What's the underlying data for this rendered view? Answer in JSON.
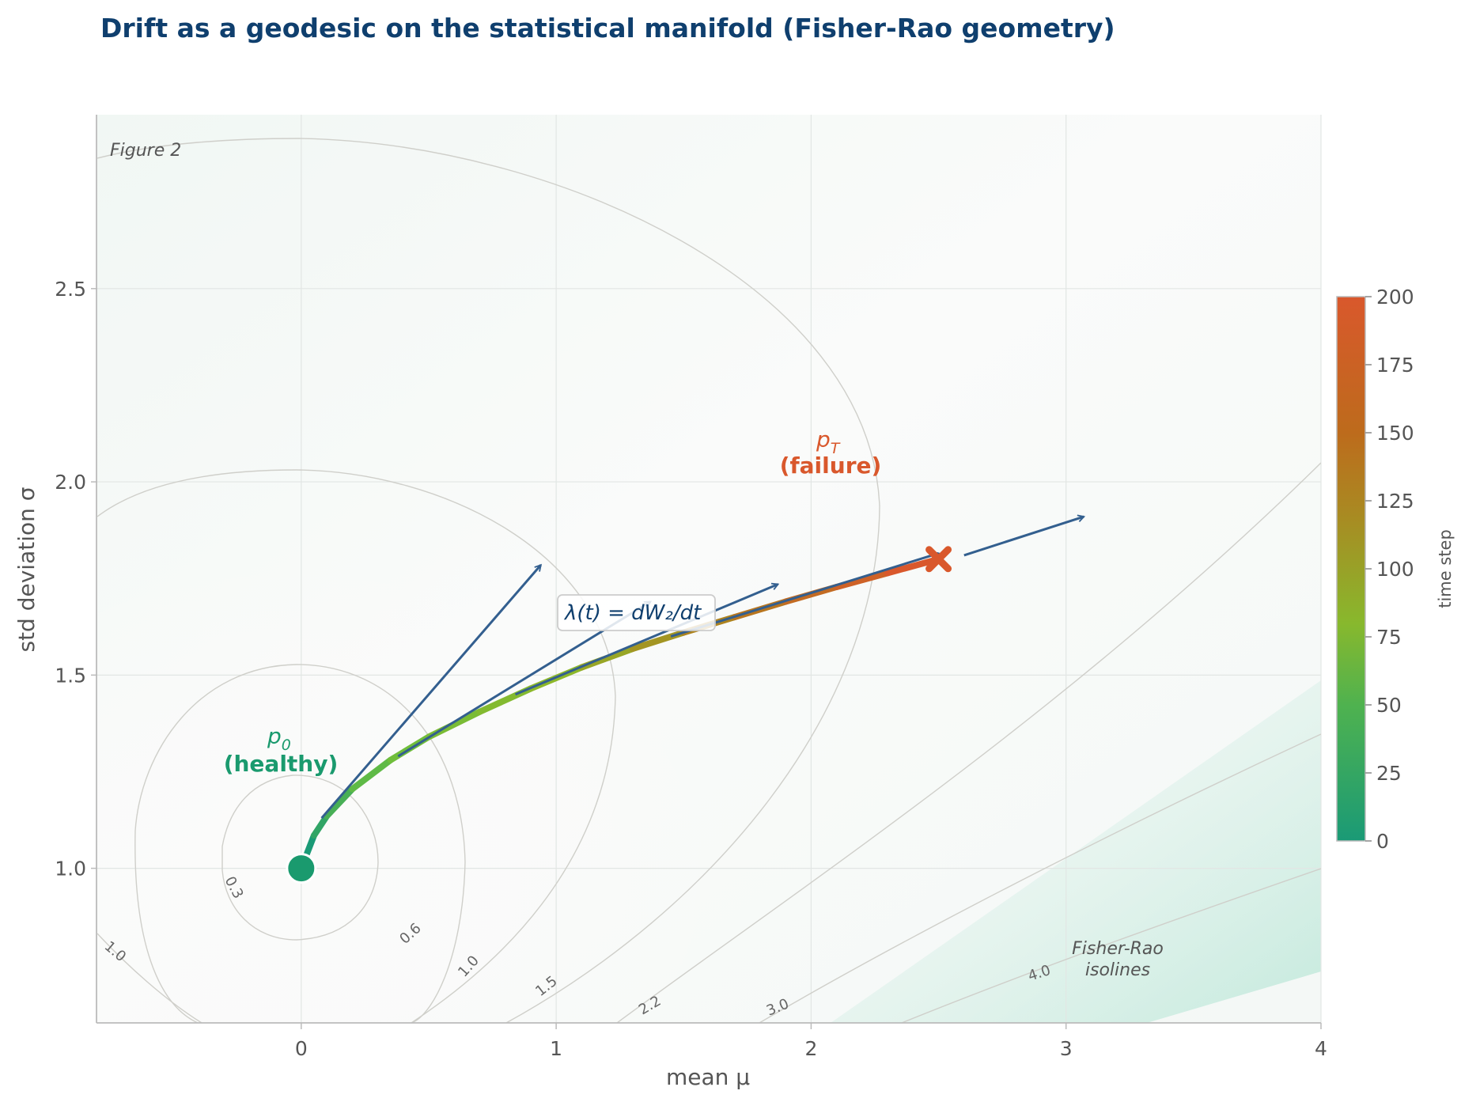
{
  "chart_data": {
    "type": "line",
    "title": "Drift as a geodesic on the statistical manifold  (Fisher-Rao geometry)",
    "xlabel": "mean  μ",
    "ylabel": "std deviation  σ",
    "xlim": [
      -0.8,
      4.0
    ],
    "ylim": [
      0.6,
      2.95
    ],
    "xticks": [
      "0",
      "1",
      "2",
      "3",
      "4"
    ],
    "yticks": [
      "1.0",
      "1.5",
      "2.0",
      "2.5"
    ],
    "grid": true,
    "figure_tag": "Figure 2",
    "path": {
      "name": "geodesic drift path",
      "x": [
        0.0,
        0.05,
        0.1,
        0.2,
        0.35,
        0.5,
        0.7,
        0.9,
        1.1,
        1.3,
        1.5,
        1.7,
        1.9,
        2.1,
        2.3,
        2.5
      ],
      "y": [
        1.0,
        1.085,
        1.135,
        1.205,
        1.28,
        1.34,
        1.405,
        1.465,
        1.52,
        1.568,
        1.61,
        1.65,
        1.69,
        1.728,
        1.764,
        1.8
      ],
      "time_range": [
        0,
        200
      ]
    },
    "start_point": {
      "x": 0.0,
      "y": 1.0,
      "label_symbol": "p",
      "label_sub": "0",
      "label_text": "(healthy)"
    },
    "end_point": {
      "x": 2.5,
      "y": 1.8,
      "label_symbol": "p",
      "label_sub": "T",
      "label_text": "(failure)"
    },
    "tangent_arrows": [
      {
        "x0": 0.08,
        "y0": 1.13,
        "x1": 0.94,
        "y1": 1.785
      },
      {
        "x0": 0.38,
        "y0": 1.29,
        "x1": 1.37,
        "y1": 1.69
      },
      {
        "x0": 0.84,
        "y0": 1.45,
        "x1": 1.87,
        "y1": 1.735
      },
      {
        "x0": 1.45,
        "y0": 1.6,
        "x1": 2.5,
        "y1": 1.815
      },
      {
        "x0": 2.6,
        "y0": 1.81,
        "x1": 3.07,
        "y1": 1.91
      }
    ],
    "lambda_annotation": "λ(t) = dW₂/dt",
    "isolines_annotation": [
      "Fisher-Rao",
      "isolines"
    ],
    "contour_levels": [
      "0.3",
      "0.6",
      "1.0",
      "1.5",
      "2.2",
      "3.0",
      "4.0"
    ],
    "colorbar": {
      "label": "time step",
      "range": [
        0,
        200
      ],
      "ticks": [
        "0",
        "25",
        "50",
        "75",
        "100",
        "125",
        "150",
        "175",
        "200"
      ],
      "colors": [
        "#1a9a76",
        "#6bbf3e",
        "#8db82a",
        "#b37a1d",
        "#d9582c"
      ]
    },
    "colors": {
      "start": "#1a9a6e",
      "end": "#d9582c",
      "arrows": "#335f8f",
      "title": "#0f3f6e"
    }
  }
}
